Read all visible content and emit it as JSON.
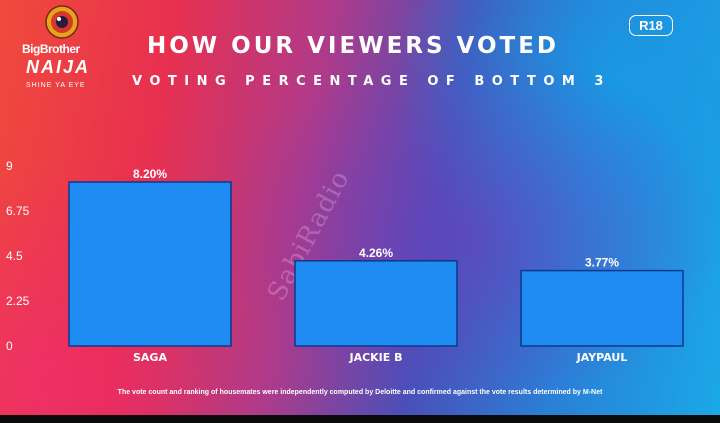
{
  "logo": {
    "line1": "BigBrother",
    "line2": "NAIJA",
    "line3": "SHINE YA EYE"
  },
  "rating_badge": "R18",
  "colors": {
    "bar_fill": "#1e8cf2",
    "bar_edge": "#0a3a8a",
    "text": "#ffffff"
  },
  "footnote": "The vote count and ranking of housemates were independently computed by Deloitte and confirmed against the vote results determined by M-Net",
  "watermark": "SabiRadio",
  "chart_data": {
    "type": "bar",
    "title": "HOW OUR VIEWERS VOTED",
    "subtitle": "VOTING PERCENTAGE OF BOTTOM 3",
    "xlabel": "",
    "ylabel": "",
    "categories": [
      "SAGA",
      "JACKIE B",
      "JAYPAUL"
    ],
    "values": [
      8.2,
      4.26,
      3.77
    ],
    "value_labels": [
      "8.20%",
      "4.26%",
      "3.77%"
    ],
    "ylim": [
      0,
      9
    ],
    "yticks": [
      0,
      2.25,
      4.5,
      6.75,
      9
    ],
    "ytick_labels": [
      "0",
      "2.25",
      "4.5",
      "6.75",
      "9"
    ],
    "grid": false,
    "legend": "none"
  }
}
